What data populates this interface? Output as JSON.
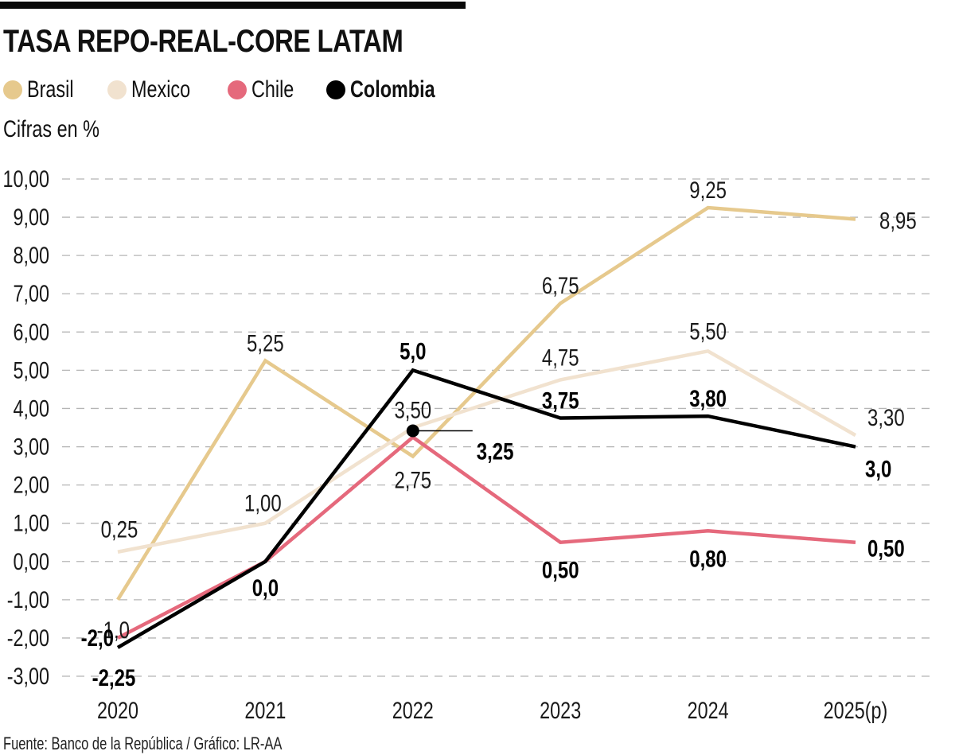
{
  "header": {
    "title": "TASA REPO-REAL-CORE LATAM",
    "unit_note": "Cifras en %",
    "source": "Fuente: Banco de la República / Gráfico: LR-AA"
  },
  "legend": [
    {
      "name": "Brasil",
      "color": "#e6c98d",
      "bold": false
    },
    {
      "name": "Mexico",
      "color": "#f1e2cf",
      "bold": false
    },
    {
      "name": "Chile",
      "color": "#e5697c",
      "bold": false
    },
    {
      "name": "Colombia",
      "color": "#000000",
      "bold": true
    }
  ],
  "chart_data": {
    "type": "line",
    "title": "TASA REPO-REAL-CORE LATAM",
    "subtitle": "Cifras en %",
    "xlabel": "",
    "ylabel": "",
    "categories": [
      "2020",
      "2021",
      "2022",
      "2023",
      "2024",
      "2025(p)"
    ],
    "ylim": [
      -3,
      10
    ],
    "yticks": [
      10,
      9,
      8,
      7,
      6,
      5,
      4,
      3,
      2,
      1,
      0,
      -1,
      -2,
      -3
    ],
    "ytick_labels": [
      "10,00",
      "9,00",
      "8,00",
      "7,00",
      "6,00",
      "5,00",
      "4,00",
      "3,00",
      "2,00",
      "1,00",
      "0,00",
      "-1,00",
      "-2,00",
      "-3,00"
    ],
    "grid": "horizontal-dashed",
    "legend_position": "top-left",
    "series": [
      {
        "name": "Brasil",
        "color": "#e6c98d",
        "values": [
          -1.0,
          5.25,
          2.75,
          6.75,
          9.25,
          8.95
        ],
        "labels": [
          "-1,0",
          "5,25",
          "2,75",
          "6,75",
          "9,25",
          "8,95"
        ],
        "bold_labels": false
      },
      {
        "name": "Mexico",
        "color": "#f1e2cf",
        "values": [
          0.25,
          1.0,
          3.5,
          4.75,
          5.5,
          3.3
        ],
        "labels": [
          "0,25",
          "1,00",
          "3,50",
          "4,75",
          "5,50",
          "3,30"
        ],
        "bold_labels": false
      },
      {
        "name": "Chile",
        "color": "#e5697c",
        "values": [
          -2.0,
          0.0,
          3.25,
          0.5,
          0.8,
          0.5
        ],
        "labels": [
          "-2,0",
          "",
          "3,25",
          "0,50",
          "0,80",
          "0,50"
        ],
        "bold_labels": true
      },
      {
        "name": "Colombia",
        "color": "#000000",
        "values": [
          -2.25,
          0.0,
          5.0,
          3.75,
          3.8,
          3.0
        ],
        "labels": [
          "-2,25",
          "0,0",
          "5,0",
          "3,75",
          "3,80",
          "3,0"
        ],
        "bold_labels": true
      }
    ],
    "annotations": [
      {
        "text": "3,25",
        "category": "2022",
        "value": 3.25,
        "type": "dot-with-leader-line"
      }
    ]
  }
}
